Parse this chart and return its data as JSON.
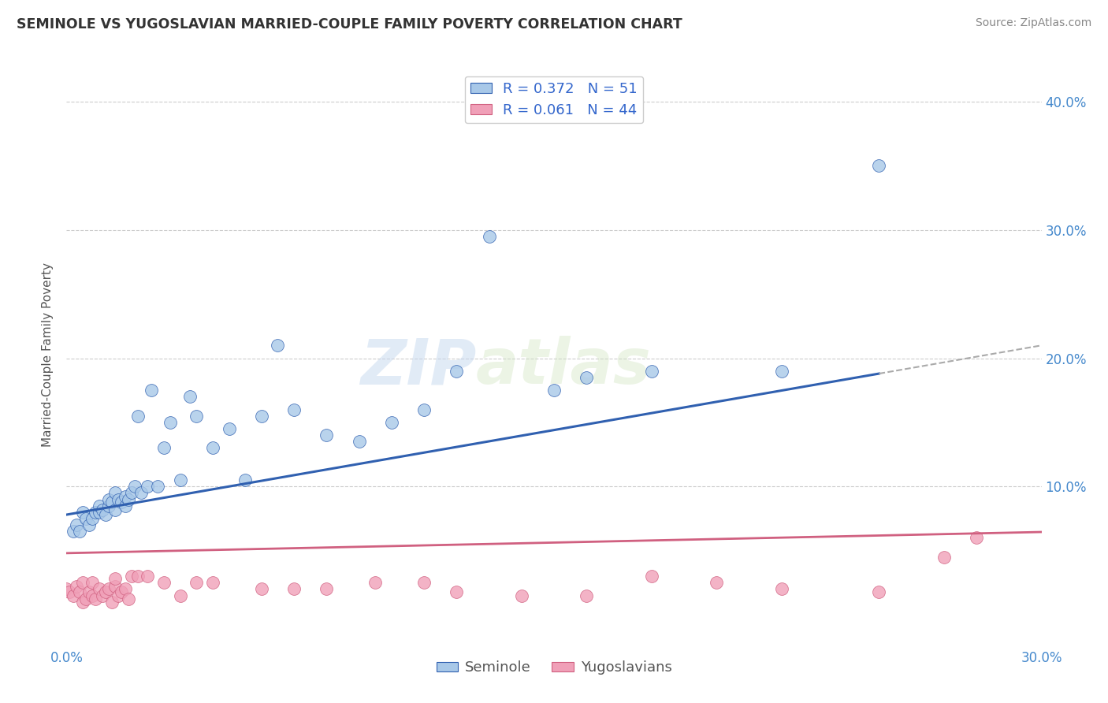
{
  "title": "SEMINOLE VS YUGOSLAVIAN MARRIED-COUPLE FAMILY POVERTY CORRELATION CHART",
  "source": "Source: ZipAtlas.com",
  "ylabel": "Married-Couple Family Poverty",
  "xlim": [
    0.0,
    0.3
  ],
  "ylim": [
    -0.025,
    0.43
  ],
  "R_seminole": 0.372,
  "N_seminole": 51,
  "R_yugoslav": 0.061,
  "N_yugoslav": 44,
  "color_seminole": "#a8c8e8",
  "color_yugoslav": "#f0a0b8",
  "trendline_seminole_color": "#3060b0",
  "trendline_yugoslav_color": "#d06080",
  "watermark_zip": "ZIP",
  "watermark_atlas": "atlas",
  "seminole_x": [
    0.002,
    0.003,
    0.004,
    0.005,
    0.006,
    0.007,
    0.008,
    0.009,
    0.01,
    0.01,
    0.011,
    0.012,
    0.013,
    0.013,
    0.014,
    0.015,
    0.015,
    0.016,
    0.017,
    0.018,
    0.018,
    0.019,
    0.02,
    0.021,
    0.022,
    0.023,
    0.025,
    0.026,
    0.028,
    0.03,
    0.032,
    0.035,
    0.038,
    0.04,
    0.045,
    0.05,
    0.055,
    0.06,
    0.065,
    0.07,
    0.08,
    0.09,
    0.1,
    0.11,
    0.12,
    0.13,
    0.15,
    0.16,
    0.18,
    0.22,
    0.25
  ],
  "seminole_y": [
    0.065,
    0.07,
    0.065,
    0.08,
    0.075,
    0.07,
    0.075,
    0.08,
    0.08,
    0.085,
    0.082,
    0.078,
    0.085,
    0.09,
    0.088,
    0.082,
    0.095,
    0.09,
    0.088,
    0.085,
    0.092,
    0.09,
    0.095,
    0.1,
    0.155,
    0.095,
    0.1,
    0.175,
    0.1,
    0.13,
    0.15,
    0.105,
    0.17,
    0.155,
    0.13,
    0.145,
    0.105,
    0.155,
    0.21,
    0.16,
    0.14,
    0.135,
    0.15,
    0.16,
    0.19,
    0.295,
    0.175,
    0.185,
    0.19,
    0.19,
    0.35
  ],
  "yugoslav_x": [
    0.0,
    0.001,
    0.002,
    0.003,
    0.004,
    0.005,
    0.005,
    0.006,
    0.007,
    0.008,
    0.008,
    0.009,
    0.01,
    0.011,
    0.012,
    0.013,
    0.014,
    0.015,
    0.015,
    0.016,
    0.017,
    0.018,
    0.019,
    0.02,
    0.022,
    0.025,
    0.03,
    0.035,
    0.04,
    0.045,
    0.06,
    0.07,
    0.08,
    0.095,
    0.11,
    0.12,
    0.14,
    0.16,
    0.18,
    0.2,
    0.22,
    0.25,
    0.27,
    0.28
  ],
  "yugoslav_y": [
    0.02,
    0.018,
    0.015,
    0.022,
    0.018,
    0.01,
    0.025,
    0.012,
    0.018,
    0.015,
    0.025,
    0.012,
    0.02,
    0.015,
    0.018,
    0.02,
    0.01,
    0.022,
    0.028,
    0.015,
    0.018,
    0.02,
    0.012,
    0.03,
    0.03,
    0.03,
    0.025,
    0.015,
    0.025,
    0.025,
    0.02,
    0.02,
    0.02,
    0.025,
    0.025,
    0.018,
    0.015,
    0.015,
    0.03,
    0.025,
    0.02,
    0.018,
    0.045,
    0.06
  ]
}
